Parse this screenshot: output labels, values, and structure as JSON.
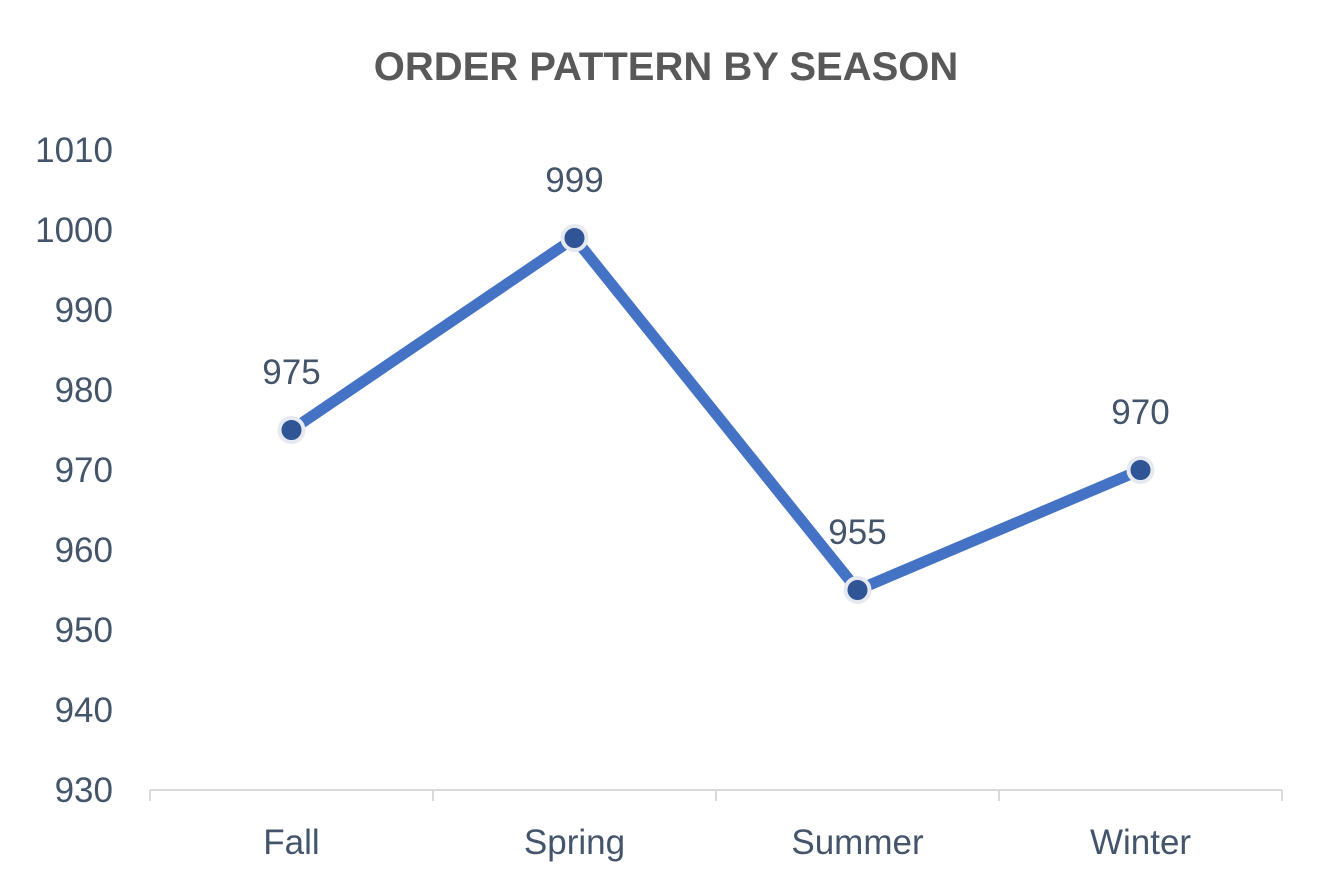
{
  "chart_data": {
    "type": "line",
    "title": "ORDER PATTERN BY SEASON",
    "xlabel": "",
    "ylabel": "",
    "categories": [
      "Fall",
      "Spring",
      "Summer",
      "Winter"
    ],
    "series": [
      {
        "values": [
          975,
          999,
          955,
          970
        ]
      }
    ],
    "ylim": [
      930,
      1010
    ],
    "yticks": [
      "930",
      "940",
      "950",
      "960",
      "970",
      "980",
      "990",
      "1000",
      "1010"
    ],
    "data_labels": [
      "975",
      "999",
      "955",
      "970"
    ],
    "grid": false,
    "legend": "none",
    "colors": {
      "line": "#4472c4",
      "marker_fill": "#2f5597",
      "marker_edge": "#e6e9f0",
      "axis": "#d9d9d9",
      "title": "#595959",
      "labels": "#44546a"
    }
  }
}
